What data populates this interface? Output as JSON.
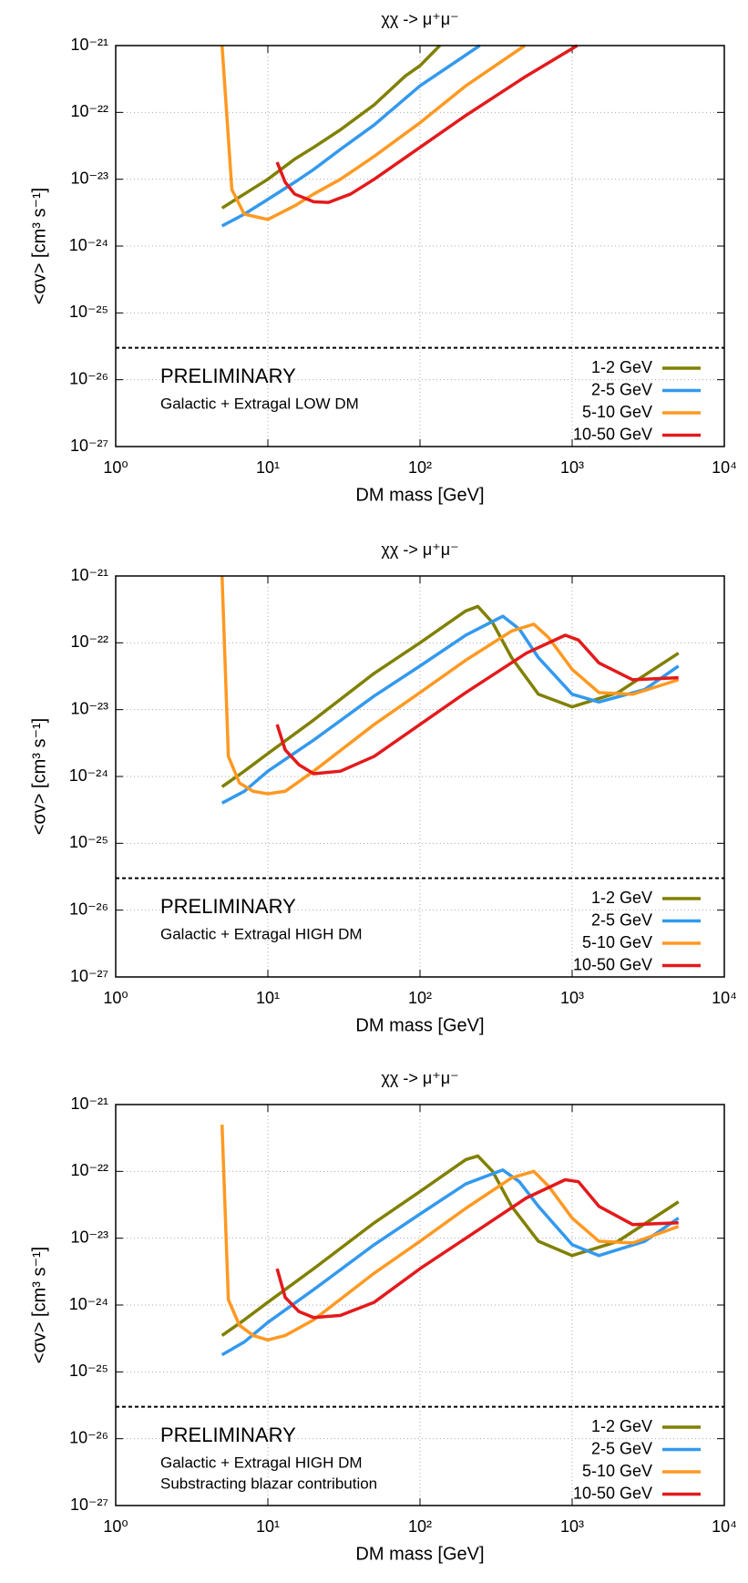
{
  "chart_data": [
    {
      "type": "line",
      "title": "χχ -> μ⁺μ⁻",
      "xlabel": "DM mass [GeV]",
      "ylabel": "<σv> [cm³ s⁻¹]",
      "log_x": true,
      "log_y": true,
      "grid": true,
      "legend": "lower right",
      "xlim": [
        1,
        10000
      ],
      "ylim": [
        1e-27,
        1e-21
      ],
      "xticks": [
        {
          "value": 1,
          "label": "10⁰"
        },
        {
          "value": 10,
          "label": "10¹"
        },
        {
          "value": 100,
          "label": "10²"
        },
        {
          "value": 1000,
          "label": "10³"
        },
        {
          "value": 10000,
          "label": "10⁴"
        }
      ],
      "yticks": [
        {
          "value": 1e-27,
          "label": "10⁻²⁷"
        },
        {
          "value": 1e-26,
          "label": "10⁻²⁶"
        },
        {
          "value": 1e-25,
          "label": "10⁻²⁵"
        },
        {
          "value": 1e-24,
          "label": "10⁻²⁴"
        },
        {
          "value": 1e-23,
          "label": "10⁻²³"
        },
        {
          "value": 1e-22,
          "label": "10⁻²²"
        },
        {
          "value": 1e-21,
          "label": "10⁻²¹"
        }
      ],
      "reference_line": 3e-26,
      "annotations": [
        {
          "text": "PRELIMINARY",
          "color": "#e8191e"
        },
        {
          "text": "Galactic + Extragal LOW DM",
          "color": "#000000"
        }
      ],
      "series": [
        {
          "name": "1-2 GeV",
          "color": "#808000",
          "x": [
            5,
            7,
            10,
            15,
            20,
            30,
            50,
            80,
            100,
            135
          ],
          "values": [
            3.7e-24,
            6e-24,
            1e-23,
            2e-23,
            3e-23,
            5.5e-23,
            1.3e-22,
            3.5e-22,
            5e-22,
            1e-21
          ]
        },
        {
          "name": "2-5 GeV",
          "color": "#3399ee",
          "x": [
            5,
            7,
            10,
            15,
            20,
            30,
            50,
            100,
            247
          ],
          "values": [
            2e-24,
            3e-24,
            5e-24,
            9e-24,
            1.4e-23,
            2.8e-23,
            6.5e-23,
            2.5e-22,
            1e-21
          ]
        },
        {
          "name": "5-10 GeV",
          "color": "#ff9922",
          "x": [
            5,
            5.8,
            7,
            10,
            15,
            20,
            30,
            50,
            100,
            200,
            488
          ],
          "values": [
            1e-21,
            7e-24,
            3e-24,
            2.5e-24,
            4e-24,
            6e-24,
            1e-23,
            2.2e-23,
            7e-23,
            2.5e-22,
            1e-21
          ]
        },
        {
          "name": "10-50 GeV",
          "color": "#e31a1c",
          "x": [
            11.5,
            13,
            15,
            20,
            25,
            35,
            50,
            100,
            200,
            500,
            1080
          ],
          "values": [
            1.8e-23,
            9e-24,
            6e-24,
            4.6e-24,
            4.5e-24,
            6e-24,
            1e-23,
            3e-23,
            9e-23,
            3.5e-22,
            1e-21
          ]
        }
      ]
    },
    {
      "type": "line",
      "title": "χχ -> μ⁺μ⁻",
      "xlabel": "DM mass [GeV]",
      "ylabel": "<σv> [cm³ s⁻¹]",
      "log_x": true,
      "log_y": true,
      "grid": true,
      "legend": "lower right",
      "xlim": [
        1,
        10000
      ],
      "ylim": [
        1e-27,
        1e-21
      ],
      "xticks": [
        {
          "value": 1,
          "label": "10⁰"
        },
        {
          "value": 10,
          "label": "10¹"
        },
        {
          "value": 100,
          "label": "10²"
        },
        {
          "value": 1000,
          "label": "10³"
        },
        {
          "value": 10000,
          "label": "10⁴"
        }
      ],
      "yticks": [
        {
          "value": 1e-27,
          "label": "10⁻²⁷"
        },
        {
          "value": 1e-26,
          "label": "10⁻²⁶"
        },
        {
          "value": 1e-25,
          "label": "10⁻²⁵"
        },
        {
          "value": 1e-24,
          "label": "10⁻²⁴"
        },
        {
          "value": 1e-23,
          "label": "10⁻²³"
        },
        {
          "value": 1e-22,
          "label": "10⁻²²"
        },
        {
          "value": 1e-21,
          "label": "10⁻²¹"
        }
      ],
      "reference_line": 3e-26,
      "annotations": [
        {
          "text": "PRELIMINARY",
          "color": "#e8191e"
        },
        {
          "text": "Galactic + Extragal HIGH DM",
          "color": "#000000"
        }
      ],
      "series": [
        {
          "name": "1-2 GeV",
          "color": "#808000",
          "x": [
            5,
            7,
            10,
            20,
            50,
            100,
            200,
            240,
            300,
            400,
            600,
            1000,
            2000,
            5000
          ],
          "values": [
            7e-25,
            1.2e-24,
            2.2e-24,
            7e-24,
            3.5e-23,
            1e-22,
            3e-22,
            3.5e-22,
            2e-22,
            6e-23,
            1.7e-23,
            1.1e-23,
            1.8e-23,
            7e-23
          ]
        },
        {
          "name": "2-5 GeV",
          "color": "#3399ee",
          "x": [
            5,
            7,
            10,
            20,
            50,
            100,
            200,
            350,
            450,
            600,
            1000,
            1500,
            3000,
            5000
          ],
          "values": [
            4e-25,
            6e-25,
            1.2e-24,
            3.5e-24,
            1.6e-23,
            4.5e-23,
            1.3e-22,
            2.5e-22,
            1.6e-22,
            6e-23,
            1.7e-23,
            1.3e-23,
            2e-23,
            4.5e-23
          ]
        },
        {
          "name": "5-10 GeV",
          "color": "#ff9922",
          "x": [
            5,
            5.5,
            6.5,
            8,
            10,
            13,
            20,
            50,
            100,
            200,
            400,
            560,
            700,
            1000,
            1500,
            2500,
            5000
          ],
          "values": [
            1e-21,
            2e-24,
            8e-25,
            6e-25,
            5.5e-25,
            6e-25,
            1.2e-24,
            6e-24,
            1.8e-23,
            5.5e-23,
            1.5e-22,
            1.9e-22,
            1.2e-22,
            4e-23,
            1.8e-23,
            1.7e-23,
            2.8e-23
          ]
        },
        {
          "name": "10-50 GeV",
          "color": "#e31a1c",
          "x": [
            11.5,
            13,
            16,
            20,
            30,
            50,
            100,
            200,
            500,
            900,
            1100,
            1500,
            2500,
            5000
          ],
          "values": [
            6e-24,
            2.5e-24,
            1.5e-24,
            1.1e-24,
            1.2e-24,
            2e-24,
            6e-24,
            1.8e-23,
            7e-23,
            1.3e-22,
            1.1e-22,
            5e-23,
            2.8e-23,
            3e-23
          ]
        }
      ]
    },
    {
      "type": "line",
      "title": "χχ -> μ⁺μ⁻",
      "xlabel": "DM mass [GeV]",
      "ylabel": "<σv> [cm³ s⁻¹]",
      "log_x": true,
      "log_y": true,
      "grid": true,
      "legend": "lower right",
      "xlim": [
        1,
        10000
      ],
      "ylim": [
        1e-27,
        1e-21
      ],
      "xticks": [
        {
          "value": 1,
          "label": "10⁰"
        },
        {
          "value": 10,
          "label": "10¹"
        },
        {
          "value": 100,
          "label": "10²"
        },
        {
          "value": 1000,
          "label": "10³"
        },
        {
          "value": 10000,
          "label": "10⁴"
        }
      ],
      "yticks": [
        {
          "value": 1e-27,
          "label": "10⁻²⁷"
        },
        {
          "value": 1e-26,
          "label": "10⁻²⁶"
        },
        {
          "value": 1e-25,
          "label": "10⁻²⁵"
        },
        {
          "value": 1e-24,
          "label": "10⁻²⁴"
        },
        {
          "value": 1e-23,
          "label": "10⁻²³"
        },
        {
          "value": 1e-22,
          "label": "10⁻²²"
        },
        {
          "value": 1e-21,
          "label": "10⁻²¹"
        }
      ],
      "reference_line": 3e-26,
      "annotations": [
        {
          "text": "PRELIMINARY",
          "color": "#e8191e"
        },
        {
          "text": "Galactic + Extragal HIGH DM",
          "color": "#000000"
        },
        {
          "text": "Substracting blazar contribution",
          "color": "#000000"
        }
      ],
      "series": [
        {
          "name": "1-2 GeV",
          "color": "#808000",
          "x": [
            5,
            7,
            10,
            20,
            50,
            100,
            200,
            240,
            300,
            400,
            600,
            1000,
            2000,
            5000
          ],
          "values": [
            3.5e-25,
            6e-25,
            1.1e-24,
            3.5e-24,
            1.7e-23,
            5e-23,
            1.5e-22,
            1.7e-22,
            1e-22,
            3e-23,
            9e-24,
            5.5e-24,
            9e-24,
            3.5e-23
          ]
        },
        {
          "name": "2-5 GeV",
          "color": "#3399ee",
          "x": [
            5,
            7,
            10,
            20,
            50,
            100,
            200,
            350,
            450,
            600,
            1000,
            1500,
            3000,
            5000
          ],
          "values": [
            1.8e-25,
            2.8e-25,
            5.5e-25,
            1.7e-24,
            8e-24,
            2.3e-23,
            6.5e-23,
            1.05e-22,
            7e-23,
            3e-23,
            8e-24,
            5.5e-24,
            9e-24,
            2e-23
          ]
        },
        {
          "name": "5-10 GeV",
          "color": "#ff9922",
          "x": [
            5,
            5.5,
            6.5,
            8,
            10,
            13,
            20,
            50,
            100,
            200,
            400,
            560,
            700,
            1000,
            1500,
            2500,
            5000
          ],
          "values": [
            5e-22,
            1.2e-24,
            5e-25,
            3.5e-25,
            3e-25,
            3.5e-25,
            6e-25,
            3e-24,
            9e-24,
            2.8e-23,
            8e-23,
            1e-22,
            6e-23,
            2e-23,
            9e-24,
            8.5e-24,
            1.5e-23
          ]
        },
        {
          "name": "10-50 GeV",
          "color": "#e31a1c",
          "x": [
            11.5,
            13,
            16,
            20,
            30,
            50,
            100,
            200,
            500,
            900,
            1100,
            1500,
            2500,
            5000
          ],
          "values": [
            3.5e-24,
            1.3e-24,
            8e-25,
            6.5e-25,
            7e-25,
            1.1e-24,
            3.5e-24,
            1e-23,
            4e-23,
            7.5e-23,
            7e-23,
            3e-23,
            1.6e-23,
            1.7e-23
          ]
        }
      ]
    }
  ]
}
